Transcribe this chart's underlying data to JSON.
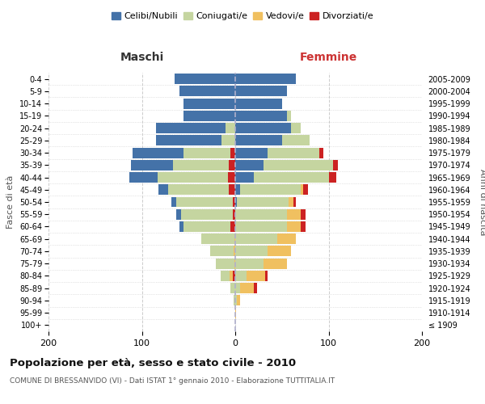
{
  "age_groups": [
    "100+",
    "95-99",
    "90-94",
    "85-89",
    "80-84",
    "75-79",
    "70-74",
    "65-69",
    "60-64",
    "55-59",
    "50-54",
    "45-49",
    "40-44",
    "35-39",
    "30-34",
    "25-29",
    "20-24",
    "15-19",
    "10-14",
    "5-9",
    "0-4"
  ],
  "birth_years": [
    "≤ 1909",
    "1910-1914",
    "1915-1919",
    "1920-1924",
    "1925-1929",
    "1930-1934",
    "1935-1939",
    "1940-1944",
    "1945-1949",
    "1950-1954",
    "1955-1959",
    "1960-1964",
    "1965-1969",
    "1970-1974",
    "1975-1979",
    "1980-1984",
    "1985-1989",
    "1990-1994",
    "1995-1999",
    "2000-2004",
    "2005-2009"
  ],
  "maschi": {
    "celibi": [
      0,
      0,
      0,
      0,
      0,
      0,
      0,
      0,
      5,
      5,
      5,
      10,
      30,
      45,
      55,
      70,
      75,
      55,
      55,
      60,
      65
    ],
    "coniugati": [
      0,
      0,
      2,
      5,
      10,
      20,
      25,
      35,
      50,
      55,
      60,
      65,
      75,
      60,
      50,
      15,
      10,
      0,
      0,
      0,
      0
    ],
    "vedovi": [
      0,
      0,
      0,
      0,
      3,
      1,
      2,
      1,
      0,
      0,
      0,
      0,
      0,
      0,
      0,
      0,
      0,
      0,
      0,
      0,
      0
    ],
    "divorziati": [
      0,
      0,
      0,
      0,
      3,
      0,
      0,
      0,
      5,
      3,
      3,
      7,
      8,
      7,
      5,
      0,
      0,
      0,
      0,
      0,
      0
    ]
  },
  "femmine": {
    "nubili": [
      0,
      0,
      0,
      0,
      0,
      0,
      0,
      0,
      0,
      0,
      2,
      5,
      20,
      30,
      35,
      50,
      60,
      55,
      50,
      55,
      65
    ],
    "coniugate": [
      0,
      0,
      2,
      5,
      12,
      30,
      35,
      45,
      55,
      55,
      55,
      65,
      80,
      75,
      55,
      30,
      10,
      5,
      0,
      0,
      0
    ],
    "vedove": [
      0,
      1,
      3,
      15,
      20,
      25,
      25,
      20,
      15,
      15,
      5,
      3,
      0,
      0,
      0,
      0,
      0,
      0,
      0,
      0,
      0
    ],
    "divorziate": [
      0,
      0,
      0,
      3,
      3,
      0,
      0,
      0,
      5,
      5,
      3,
      5,
      8,
      5,
      4,
      0,
      0,
      0,
      0,
      0,
      0
    ]
  },
  "colors": {
    "celibi": "#4472a8",
    "coniugati": "#c5d5a0",
    "vedovi": "#f0c060",
    "divorziati": "#cc2222"
  },
  "title": "Popolazione per età, sesso e stato civile - 2010",
  "subtitle": "COMUNE DI BRESSANVIDO (VI) - Dati ISTAT 1° gennaio 2010 - Elaborazione TUTTITALIA.IT",
  "header_maschi": "Maschi",
  "header_femmine": "Femmine",
  "ylabel_left": "Fasce di età",
  "ylabel_right": "Anni di nascita",
  "xlim": 200,
  "bg_color": "#ffffff",
  "grid_color": "#cccccc",
  "legend_labels": [
    "Celibi/Nubili",
    "Coniugati/e",
    "Vedovi/e",
    "Divorziati/e"
  ]
}
